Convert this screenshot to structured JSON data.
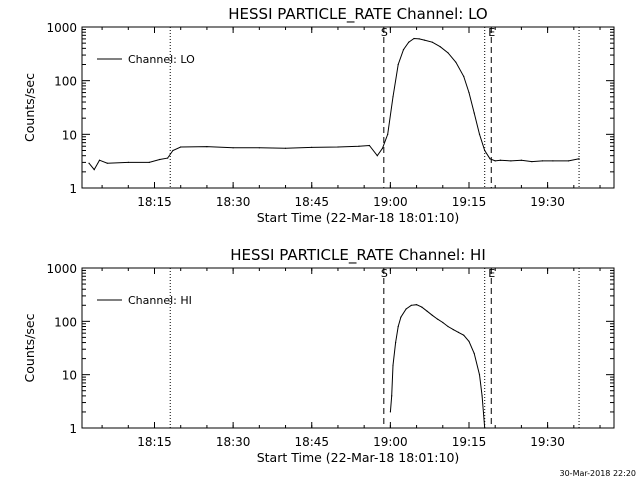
{
  "footer": {
    "timestamp": "30-Mar-2018 22:20"
  },
  "chart_data": [
    {
      "type": "line",
      "title": "HESSI PARTICLE_RATE Channel: LO",
      "xlabel": "Start Time (22-Mar-18 18:01:10)",
      "ylabel": "Counts/sec",
      "y_scale": "log",
      "ylim": [
        1,
        1000
      ],
      "xlim": [
        "18:01:10",
        "19:42:40"
      ],
      "x_ticks": [
        "18:15",
        "18:30",
        "18:45",
        "19:00",
        "19:15",
        "19:30"
      ],
      "y_ticks": [
        "1",
        "10",
        "100",
        "1000"
      ],
      "legend": {
        "placement": "top-left",
        "entries": [
          "Channel: LO"
        ]
      },
      "markers": [
        {
          "label": "S",
          "x": "18:58:45",
          "style": "dashed"
        },
        {
          "label": "E",
          "x": "19:19:15",
          "style": "dashed"
        }
      ],
      "dotted_lines": [
        "18:18:00",
        "19:18:00",
        "19:36:00"
      ],
      "series": [
        {
          "name": "Channel: LO",
          "x": [
            "18:02:30",
            "18:03:30",
            "18:04:30",
            "18:06:00",
            "18:10:00",
            "18:14:00",
            "18:16:00",
            "18:17:30",
            "18:18:30",
            "18:20:00",
            "18:25:00",
            "18:30:00",
            "18:35:00",
            "18:40:00",
            "18:45:00",
            "18:50:00",
            "18:54:00",
            "18:56:00",
            "18:57:30",
            "18:58:30",
            "18:59:30",
            "19:00:30",
            "19:01:30",
            "19:02:30",
            "19:03:30",
            "19:04:30",
            "19:05:30",
            "19:06:30",
            "19:08:00",
            "19:09:30",
            "19:11:00",
            "19:12:30",
            "19:14:00",
            "19:15:00",
            "19:16:00",
            "19:17:00",
            "19:18:00",
            "19:19:00",
            "19:20:00",
            "19:21:00",
            "19:23:00",
            "19:25:00",
            "19:27:00",
            "19:29:00",
            "19:31:00",
            "19:34:00",
            "19:36:00"
          ],
          "y": [
            2.9,
            2.2,
            3.3,
            2.9,
            3.0,
            3.0,
            3.4,
            3.6,
            5.0,
            5.8,
            5.9,
            5.6,
            5.6,
            5.5,
            5.7,
            5.8,
            6.0,
            6.2,
            4.0,
            5.5,
            10,
            50,
            200,
            380,
            520,
            610,
            600,
            570,
            520,
            430,
            330,
            220,
            120,
            60,
            25,
            10,
            5,
            3.5,
            3.2,
            3.3,
            3.2,
            3.3,
            3.1,
            3.2,
            3.2,
            3.2,
            3.5
          ]
        }
      ]
    },
    {
      "type": "line",
      "title": "HESSI PARTICLE_RATE Channel: HI",
      "xlabel": "Start Time (22-Mar-18 18:01:10)",
      "ylabel": "Counts/sec",
      "y_scale": "log",
      "ylim": [
        1,
        1000
      ],
      "xlim": [
        "18:01:10",
        "19:42:40"
      ],
      "x_ticks": [
        "18:15",
        "18:30",
        "18:45",
        "19:00",
        "19:15",
        "19:30"
      ],
      "y_ticks": [
        "1",
        "10",
        "100",
        "1000"
      ],
      "legend": {
        "placement": "top-left",
        "entries": [
          "Channel: HI"
        ]
      },
      "markers": [
        {
          "label": "S",
          "x": "18:58:45",
          "style": "dashed"
        },
        {
          "label": "E",
          "x": "19:19:15",
          "style": "dashed"
        }
      ],
      "dotted_lines": [
        "18:18:00",
        "19:18:00",
        "19:36:00"
      ],
      "series": [
        {
          "name": "Channel: HI",
          "x": [
            "19:00:00",
            "19:00:15",
            "19:00:30",
            "19:01:00",
            "19:01:30",
            "19:02:00",
            "19:03:00",
            "19:04:00",
            "19:05:00",
            "19:06:00",
            "19:07:00",
            "19:08:00",
            "19:09:00",
            "19:10:00",
            "19:11:00",
            "19:12:00",
            "19:13:00",
            "19:14:00",
            "19:15:00",
            "19:16:00",
            "19:17:00",
            "19:17:30",
            "19:18:00"
          ],
          "y": [
            2.0,
            4,
            15,
            40,
            80,
            120,
            170,
            200,
            205,
            185,
            155,
            130,
            110,
            95,
            80,
            70,
            62,
            55,
            42,
            25,
            10,
            4,
            1
          ]
        }
      ]
    }
  ]
}
